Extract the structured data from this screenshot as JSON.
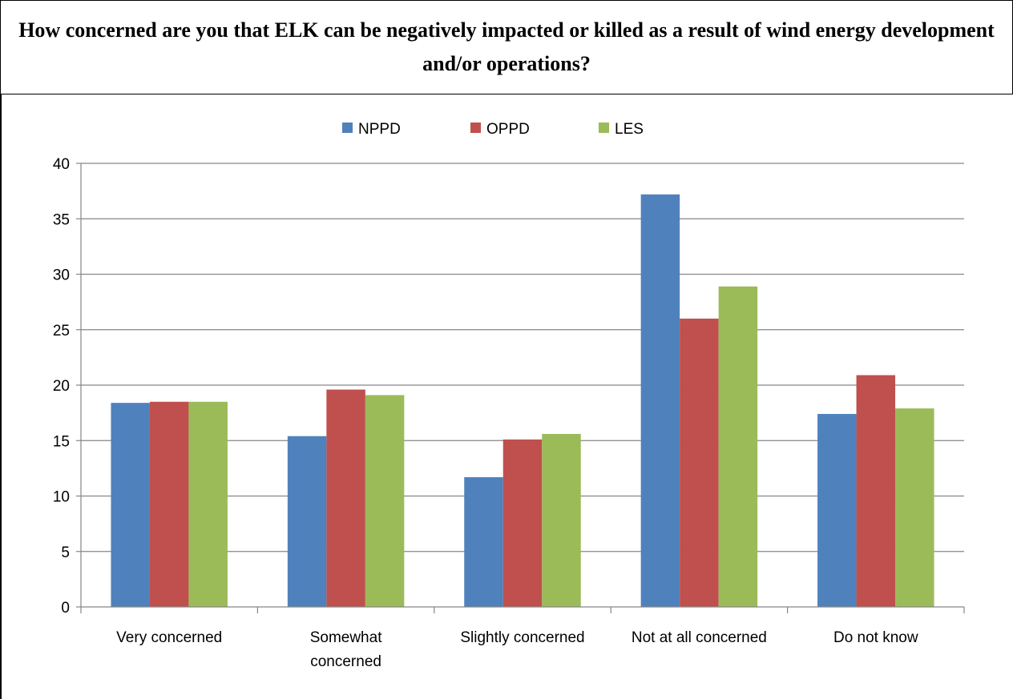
{
  "title": "How concerned are you that ELK can be negatively impacted or killed as a result of wind energy development and/or operations?",
  "chart_data": {
    "type": "bar",
    "categories": [
      "Very concerned",
      "Somewhat concerned",
      "Slightly concerned",
      "Not at all concerned",
      "Do not know"
    ],
    "category_lines": [
      [
        "Very concerned"
      ],
      [
        "Somewhat",
        "concerned"
      ],
      [
        "Slightly concerned"
      ],
      [
        "Not at all concerned"
      ],
      [
        "Do not know"
      ]
    ],
    "series": [
      {
        "name": "NPPD",
        "color": "#4F81BD",
        "values": [
          18.4,
          15.4,
          11.7,
          37.2,
          17.4
        ]
      },
      {
        "name": "OPPD",
        "color": "#C0504D",
        "values": [
          18.5,
          19.6,
          15.1,
          26.0,
          20.9
        ]
      },
      {
        "name": "LES",
        "color": "#9BBB59",
        "values": [
          18.5,
          19.1,
          15.6,
          28.9,
          17.9
        ]
      }
    ],
    "ylim": [
      0,
      40
    ],
    "yticks": [
      0,
      5,
      10,
      15,
      20,
      25,
      30,
      35,
      40
    ],
    "grid": true,
    "legend": "top-center",
    "xlabel": "",
    "ylabel": ""
  }
}
